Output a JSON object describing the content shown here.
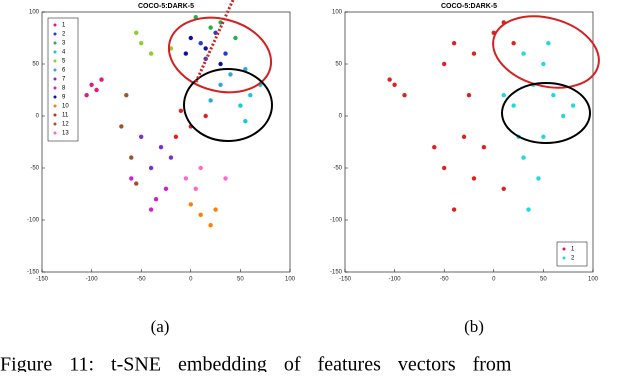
{
  "chart_data": [
    {
      "type": "scatter",
      "title": "COCO-5:DARK-5",
      "xlim": [
        -150,
        100
      ],
      "xticks": [
        -150,
        -100,
        -50,
        0,
        50,
        100
      ],
      "ylim": [
        -150,
        100
      ],
      "yticks": [
        -150,
        -100,
        -50,
        0,
        50,
        100
      ],
      "legend": "upper left",
      "series": [
        {
          "name": "1",
          "color": "#e0197d",
          "x": [
            -100,
            -95,
            -105,
            -90
          ],
          "values": [
            30,
            25,
            20,
            35
          ]
        },
        {
          "name": "2",
          "color": "#1f3fd8",
          "x": [
            10,
            25,
            35,
            15
          ],
          "values": [
            70,
            80,
            60,
            55
          ]
        },
        {
          "name": "3",
          "color": "#22b14c",
          "x": [
            30,
            45,
            20,
            5
          ],
          "values": [
            90,
            75,
            85,
            95
          ]
        },
        {
          "name": "4",
          "color": "#19c7d8",
          "x": [
            60,
            50,
            70,
            55
          ],
          "values": [
            20,
            10,
            30,
            -5
          ]
        },
        {
          "name": "5",
          "color": "#8cd02a",
          "x": [
            -50,
            -40,
            -20,
            -55
          ],
          "values": [
            70,
            60,
            65,
            80
          ]
        },
        {
          "name": "6",
          "color": "#2aa8e0",
          "x": [
            40,
            55,
            30,
            20
          ],
          "values": [
            40,
            45,
            30,
            15
          ]
        },
        {
          "name": "7",
          "color": "#7a2fd0",
          "x": [
            -30,
            -40,
            -20,
            -50
          ],
          "values": [
            -30,
            -50,
            -40,
            -20
          ]
        },
        {
          "name": "8",
          "color": "#d01fd0",
          "x": [
            -35,
            -25,
            -60,
            -40
          ],
          "values": [
            -80,
            -70,
            -60,
            -90
          ]
        },
        {
          "name": "9",
          "color": "#1010a0",
          "x": [
            15,
            0,
            30,
            -5
          ],
          "values": [
            65,
            75,
            50,
            60
          ]
        },
        {
          "name": "10",
          "color": "#ff7f00",
          "x": [
            10,
            20,
            0,
            25
          ],
          "values": [
            -95,
            -105,
            -85,
            -90
          ]
        },
        {
          "name": "11",
          "color": "#e62020",
          "x": [
            0,
            -15,
            15,
            -10
          ],
          "values": [
            -10,
            -20,
            0,
            5
          ]
        },
        {
          "name": "12",
          "color": "#a0522d",
          "x": [
            -60,
            -70,
            -55,
            -65
          ],
          "values": [
            -40,
            -10,
            -65,
            20
          ]
        },
        {
          "name": "13",
          "color": "#ff66cc",
          "x": [
            -5,
            10,
            35,
            5
          ],
          "values": [
            -60,
            -50,
            -60,
            -70
          ]
        }
      ]
    },
    {
      "type": "scatter",
      "title": "COCO-5:DARK-5",
      "xlim": [
        -150,
        100
      ],
      "xticks": [
        -150,
        -100,
        -50,
        0,
        50,
        100
      ],
      "ylim": [
        -150,
        100
      ],
      "yticks": [
        -150,
        -100,
        -50,
        0,
        50,
        100
      ],
      "legend": "lower right",
      "series": [
        {
          "name": "1",
          "color": "#e02020",
          "x": [
            -100,
            -90,
            -105,
            -40,
            -20,
            -50,
            0,
            10,
            -30,
            -50,
            -20,
            -10,
            10,
            -40,
            -60,
            -25,
            20
          ],
          "values": [
            30,
            20,
            35,
            70,
            60,
            50,
            80,
            90,
            -20,
            -50,
            -60,
            -30,
            -70,
            -90,
            -30,
            20,
            70
          ]
        },
        {
          "name": "2",
          "color": "#20d8e0",
          "x": [
            30,
            50,
            40,
            60,
            20,
            70,
            50,
            30,
            45,
            35,
            25,
            10,
            55,
            80
          ],
          "values": [
            60,
            50,
            30,
            20,
            10,
            0,
            -20,
            -40,
            -60,
            -90,
            -20,
            20,
            70,
            10
          ]
        }
      ]
    }
  ],
  "subfigure_labels": [
    "(a)",
    "(b)"
  ],
  "caption": "Figure 11: t-SNE embedding of features vectors from"
}
